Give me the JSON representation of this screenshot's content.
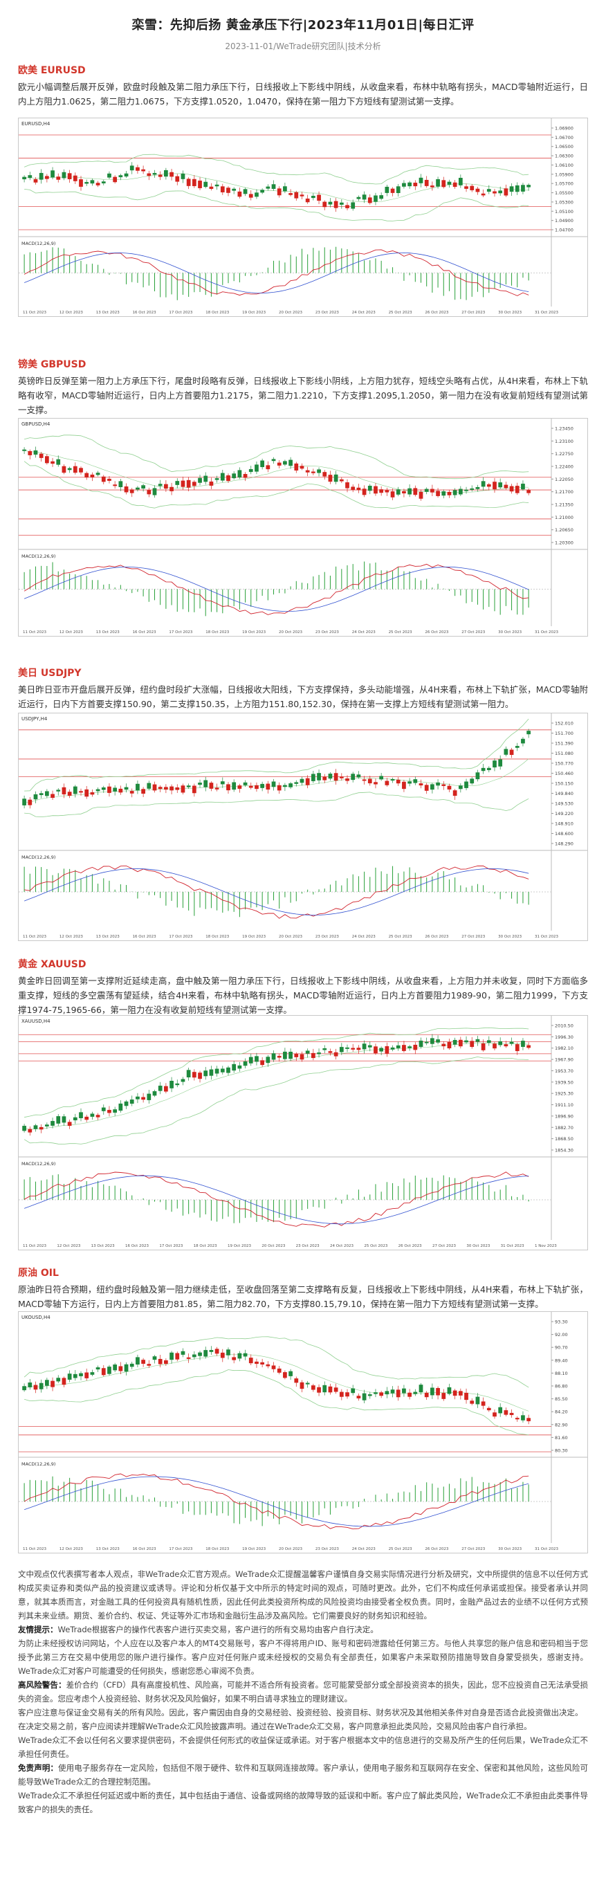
{
  "header": {
    "title": "栾雪：先抑后扬 黄金承压下行|2023年11月01日|每日汇评",
    "subtitle": "2023-11-01/WeTrade研究团队|技术分析"
  },
  "sections": [
    {
      "title": "欧美 EURUSD",
      "body": "欧元小幅调整后展开反弹，欧盘时段触及第二阻力承压下行，日线报收上下影线中阴线，从收盘来看，布林中轨略有拐头，MACD零轴附近运行，日内上方阻力1.0625，第二阻力1.0675，下方支撑1.0520，1.0470，保持在第一阻力下方短线有望测试第一支撑。"
    },
    {
      "title": "镑美 GBPUSD",
      "body": "英镑昨日反弹至第一阻力上方承压下行，尾盘时段略有反弹，日线报收上下影线小阴线，上方阻力犹存，短线空头略有占优，从4H来看，布林上下轨略有收窄，MACD零轴附近运行，日内上方首要阻力1.2175，第二阻力1.2210，下方支撑1.2095,1.2050，第一阻力在没有收复前短线有望测试第一支撑。"
    },
    {
      "title": "美日 USDJPY",
      "body": "美日昨日亚市开盘后展开反弹，纽约盘时段扩大涨幅，日线报收大阳线，下方支撑保持，多头动能增强，从4H来看，布林上下轨扩张，MACD零轴附近运行，日内下方首要支撑150.90，第二支撑150.35，上方阻力151.80,152.30，保持在第一支撑上方短线有望测试第一阻力。"
    },
    {
      "title": "黄金 XAUUSD",
      "body": "黄金昨日回调至第一支撑附近延续走高，盘中触及第一阻力承压下行，日线报收上下影线中阴线，从收盘来看，上方阻力并未收复，同时下方面临多重支撑，短线的多空震荡有望延续，结合4H来看，布林中轨略有拐头，MACD零轴附近运行，日内上方首要阻力1989-90，第二阻力1999，下方支撑1974-75,1965-66，第一阻力在没有收复前短线有望测试第一支撑。"
    },
    {
      "title": "原油 OIL",
      "body": "原油昨日符合预期，纽约盘时段触及第一阻力继续走低，至收盘回落至第二支撑略有反复，日线报收上下影线中阴线，从4H来看，布林上下轨扩张，MACD零轴下方运行，日内上方首要阻力81.85，第二阻力82.70，下方支撑80.15,79.10，保持在第一阻力下方短线有望测试第一支撑。"
    }
  ],
  "charts": [
    {
      "label": "EURUSD,H4",
      "osc_label": "MACD(12,26,9)",
      "levels": [
        1.0675,
        1.0625,
        1.052,
        1.047
      ],
      "ticks": [
        "1.06900",
        "1.06700",
        "1.06500",
        "1.06300",
        "1.06100",
        "1.05900",
        "1.05700",
        "1.05500",
        "1.05300",
        "1.05100",
        "1.04900",
        "1.04700"
      ],
      "dates": [
        "11 Oct 2023",
        "12 Oct 2023",
        "13 Oct 2023",
        "16 Oct 2023",
        "17 Oct 2023",
        "18 Oct 2023",
        "19 Oct 2023",
        "20 Oct 2023",
        "23 Oct 2023",
        "24 Oct 2023",
        "25 Oct 2023",
        "26 Oct 2023",
        "27 Oct 2023",
        "30 Oct 2023",
        "31 Oct 2023"
      ]
    },
    {
      "label": "GBPUSD,H4",
      "osc_label": "MACD(12,26,9)",
      "levels": [
        1.221,
        1.2175,
        1.2095,
        1.205
      ],
      "ticks": [
        "1.23450",
        "1.23100",
        "1.22750",
        "1.22400",
        "1.22050",
        "1.21700",
        "1.21350",
        "1.21000",
        "1.20650",
        "1.20300"
      ],
      "dates": [
        "11 Oct 2023",
        "12 Oct 2023",
        "13 Oct 2023",
        "16 Oct 2023",
        "17 Oct 2023",
        "18 Oct 2023",
        "19 Oct 2023",
        "20 Oct 2023",
        "23 Oct 2023",
        "24 Oct 2023",
        "25 Oct 2023",
        "26 Oct 2023",
        "27 Oct 2023",
        "30 Oct 2023",
        "31 Oct 2023"
      ]
    },
    {
      "label": "USDJPY,H4",
      "osc_label": "MACD(12,26,9)",
      "levels": [
        152.3,
        151.8,
        150.9,
        150.35
      ],
      "ticks": [
        "152.010",
        "151.700",
        "151.390",
        "151.080",
        "150.770",
        "150.460",
        "150.150",
        "149.840",
        "149.530",
        "149.220",
        "148.910",
        "148.600",
        "148.290"
      ],
      "dates": [
        "11 Oct 2023",
        "12 Oct 2023",
        "13 Oct 2023",
        "16 Oct 2023",
        "17 Oct 2023",
        "18 Oct 2023",
        "19 Oct 2023",
        "20 Oct 2023",
        "23 Oct 2023",
        "24 Oct 2023",
        "25 Oct 2023",
        "26 Oct 2023",
        "27 Oct 2023",
        "30 Oct 2023",
        "31 Oct 2023"
      ]
    },
    {
      "label": "XAUUSD,H4",
      "osc_label": "MACD(12,26,9)",
      "levels": [
        1999,
        1990,
        1975,
        1966
      ],
      "ticks": [
        "2010.50",
        "1996.30",
        "1982.10",
        "1967.90",
        "1953.70",
        "1939.50",
        "1925.30",
        "1911.10",
        "1896.90",
        "1882.70",
        "1868.50",
        "1854.30"
      ],
      "dates": [
        "11 Oct 2023",
        "12 Oct 2023",
        "13 Oct 2023",
        "16 Oct 2023",
        "17 Oct 2023",
        "18 Oct 2023",
        "19 Oct 2023",
        "20 Oct 2023",
        "23 Oct 2023",
        "24 Oct 2023",
        "25 Oct 2023",
        "26 Oct 2023",
        "27 Oct 2023",
        "30 Oct 2023",
        "31 Oct 2023",
        "1 Nov 2023"
      ]
    },
    {
      "label": "UKOUSD,H4",
      "osc_label": "MACD(12,26,9)",
      "levels": [
        82.7,
        81.85,
        80.15,
        79.1
      ],
      "ticks": [
        "93.30",
        "92.00",
        "90.70",
        "89.40",
        "88.10",
        "86.80",
        "85.50",
        "84.20",
        "82.90",
        "81.60",
        "80.30"
      ],
      "dates": [
        "11 Oct 2023",
        "12 Oct 2023",
        "13 Oct 2023",
        "16 Oct 2023",
        "17 Oct 2023",
        "18 Oct 2023",
        "19 Oct 2023",
        "20 Oct 2023",
        "23 Oct 2023",
        "24 Oct 2023",
        "25 Oct 2023",
        "26 Oct 2023",
        "27 Oct 2023",
        "30 Oct 2023",
        "31 Oct 2023"
      ]
    }
  ],
  "disclaimer": {
    "p1": "文中观点仅代表撰写者本人观点，非WeTrade众汇官方观点。WeTrade众汇提醒温馨客户谨慎自身交易实际情况进行分析及研究，文中所提供的信息不以任何方式构成买卖证券和类似产品的投资建议或诱导。评论和分析仅基于文中所示的特定时间的观点，可随时更改。此外，它们不构成任何承诺或担保。接受者承认并同意，就其本质而言，对金融工具的任何投资具有随机性质，因此任何此类投资所构成的风险投资均由接受者全权负责。同时，金融产品过去的业绩不以任何方式预判其未来业绩。期货、差价合约、权证、凭证等外汇市场和金融衍生品涉及高风险。它们需要良好的财务知识和经验。",
    "p2_label": "友情提示：",
    "p2": "WeTrade根据客户的操作代表客户进行买卖交易，客户进行的所有交易均由客户自行决定。",
    "p3": "为防止未经授权访问网站，个人应在以及客户本人的MT4交易账号，客户不得将用户ID、账号和密码泄露给任何第三方。与他人共享您的账户信息和密码相当于您授予此第三方在交易中使用您的账户进行操作。客户应对任何账户或未经授权的交易负有全部责任，如果客户未采取预防措施导致自身蒙受损失，感谢支持。WeTrade众汇对客户可能遭受的任何损失，感谢您悉心审阅不负责。",
    "p4_label": "高风险警告：",
    "p4": "差价合约（CFD）具有高度投机性、风险高，可能并不适合所有投资者。您可能蒙受部分或全部投资资本的损失，因此，您不应投资自己无法承受损失的资金。您应考虑个人投资经验、财务状况及风险偏好，如果不明白请寻求独立的理财建议。",
    "p5": "客户应注意与保证金交易有关的所有风险。因此，客户需因由自身的交易经验、投资经验、投资目标、财务状况及其他相关条件对自身是否适合此投资做出决定。",
    "p6": "在决定交易之前，客户应阅读并理解WeTrade众汇风险披露声明。通过在WeTrade众汇交易，客户同意承担此类风险，交易风险由客户自行承担。",
    "p7": "WeTrade众汇不会以任何名义要求提供密码，不会提供任何形式的收益保证或承诺。对于客户根据本文中的信息进行的交易及所产生的任何后果，WeTrade众汇不承担任何责任。",
    "p8_label": "免责声明：",
    "p8": "使用电子服务存在一定风险，包括但不限于硬件、软件和互联网连接故障。客户承认，使用电子服务和互联网存在安全、保密和其他风险，这些风险可能导致WeTrade众汇的合理控制范围。",
    "p9": "WeTrade众汇不承担任何延迟或中断的责任，其中包括由于通信、设备或网络的故障导致的延误和中断。客户应了解此类风险，WeTrade众汇不承担由此类事件导致客户的损失的责任。"
  },
  "colors": {
    "accent": "#d2372c",
    "bull": "#1e8a3e",
    "bear": "#d4241e",
    "band": "#8fcf8f",
    "level": "#e05050",
    "macd_fast": "#d0202a",
    "macd_slow": "#3050d0",
    "hist": "#28a038"
  }
}
